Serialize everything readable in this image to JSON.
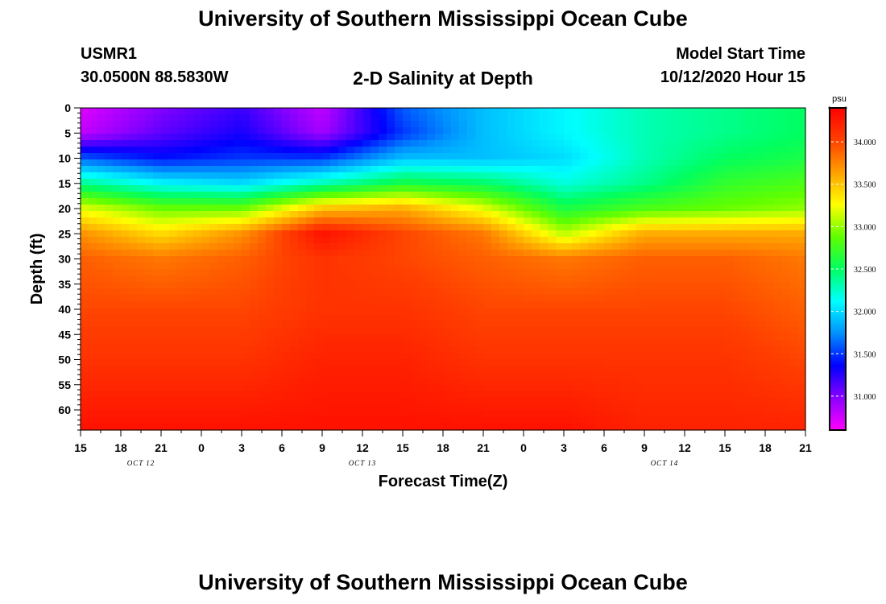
{
  "header": {
    "title": "University of Southern Mississippi Ocean Cube",
    "station_id": "USMR1",
    "station_coords": "30.0500N 88.5830W",
    "plot_title": "2-D Salinity at Depth",
    "model_label": "Model Start Time",
    "model_time": "10/12/2020 Hour 15"
  },
  "footer": {
    "title": "University of Southern Mississippi Ocean Cube"
  },
  "colors": {
    "scale": [
      "#ff00ff",
      "#8a00ff",
      "#0000ff",
      "#0090ff",
      "#00ffff",
      "#00ff60",
      "#60ff00",
      "#ffff00",
      "#ffa000",
      "#ff4000",
      "#ff0000"
    ]
  },
  "chart_data": {
    "type": "heatmap",
    "title": "2-D Salinity at Depth",
    "xlabel": "Forecast Time(Z)",
    "ylabel": "Depth (ft)",
    "x_ticks": [
      "15",
      "18",
      "21",
      "0",
      "3",
      "6",
      "9",
      "12",
      "15",
      "18",
      "21",
      "0",
      "3",
      "6",
      "9",
      "12",
      "15",
      "18",
      "21"
    ],
    "day_labels": [
      {
        "label": "OCT 12",
        "tick_index": 1.5
      },
      {
        "label": "OCT 13",
        "tick_index": 7
      },
      {
        "label": "OCT 14",
        "tick_index": 14.5
      }
    ],
    "x_range_hours": [
      0,
      54
    ],
    "y_ticks": [
      0,
      5,
      10,
      15,
      20,
      25,
      30,
      35,
      40,
      45,
      50,
      55,
      60
    ],
    "ylim": [
      0,
      64
    ],
    "colorbar": {
      "unit": "psu",
      "min": 30.6,
      "max": 34.4,
      "labels": [
        "34.000",
        "33.500",
        "33.000",
        "32.500",
        "32.000",
        "31.500",
        "31.000"
      ],
      "label_values": [
        34.0,
        33.5,
        33.0,
        32.5,
        32.0,
        31.5,
        31.0
      ]
    },
    "depth_levels_ft": [
      0,
      5,
      10,
      15,
      20,
      25,
      30,
      40,
      50,
      64
    ],
    "time_hours": [
      0,
      6,
      12,
      18,
      24,
      30,
      36,
      42,
      48,
      54
    ],
    "salinity_psu": [
      [
        30.7,
        31.0,
        31.2,
        30.8,
        31.6,
        31.9,
        32.1,
        32.3,
        32.4,
        32.5
      ],
      [
        30.8,
        31.1,
        31.3,
        30.9,
        31.5,
        31.9,
        32.1,
        32.3,
        32.4,
        32.5
      ],
      [
        31.6,
        31.4,
        31.5,
        31.5,
        31.9,
        31.9,
        32.0,
        32.3,
        32.5,
        32.6
      ],
      [
        32.4,
        32.1,
        32.0,
        32.3,
        32.6,
        32.5,
        32.2,
        32.4,
        32.7,
        32.8
      ],
      [
        33.2,
        32.9,
        32.9,
        33.5,
        33.6,
        33.2,
        32.6,
        32.8,
        32.9,
        33.0
      ],
      [
        33.7,
        33.4,
        33.7,
        34.3,
        34.0,
        33.8,
        33.1,
        33.6,
        33.6,
        33.6
      ],
      [
        33.9,
        33.8,
        33.9,
        34.1,
        34.0,
        33.9,
        33.8,
        33.9,
        33.9,
        33.8
      ],
      [
        34.0,
        34.0,
        34.0,
        34.1,
        34.1,
        34.0,
        34.0,
        34.0,
        34.0,
        33.9
      ],
      [
        34.1,
        34.1,
        34.1,
        34.2,
        34.2,
        34.1,
        34.1,
        34.1,
        34.1,
        34.0
      ],
      [
        34.3,
        34.3,
        34.3,
        34.3,
        34.3,
        34.3,
        34.3,
        34.2,
        34.2,
        34.2
      ]
    ]
  }
}
